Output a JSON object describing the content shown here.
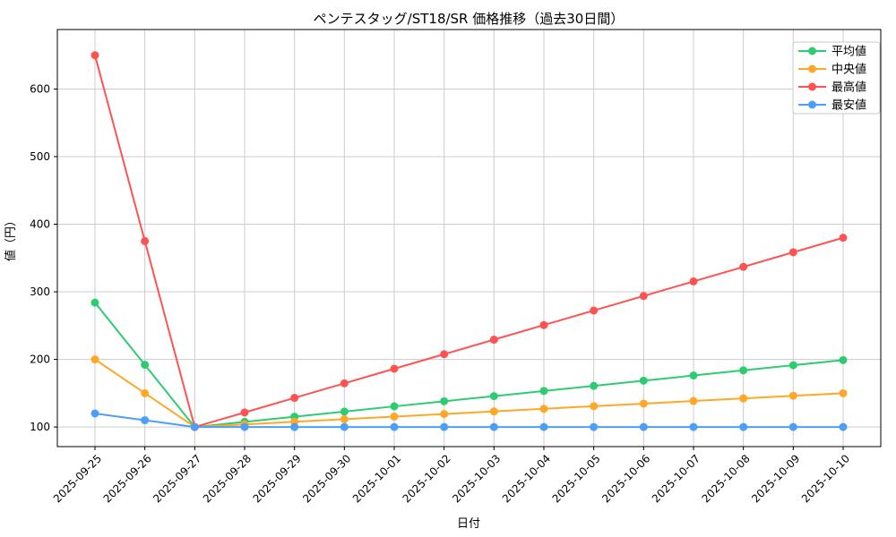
{
  "title": "ペンテスタッグ/ST18/SR 価格推移（過去30日間）",
  "chart_data": {
    "type": "line",
    "title": "ペンテスタッグ/ST18/SR 価格推移（過去30日間）",
    "xlabel": "日付",
    "ylabel": "値（円）",
    "x": [
      "2025-09-25",
      "2025-09-26",
      "2025-09-27",
      "2025-09-28",
      "2025-09-29",
      "2025-09-30",
      "2025-10-01",
      "2025-10-02",
      "2025-10-03",
      "2025-10-04",
      "2025-10-05",
      "2025-10-06",
      "2025-10-07",
      "2025-10-08",
      "2025-10-09",
      "2025-10-10"
    ],
    "series": [
      {
        "name": "平均値",
        "color": "#2ecc71",
        "values": [
          284,
          192,
          100,
          107.6,
          115.2,
          122.8,
          130.5,
          138.1,
          145.7,
          153.3,
          160.8,
          168.5,
          176.2,
          183.8,
          191.4,
          199
        ]
      },
      {
        "name": "中央値",
        "color": "#ffa726",
        "values": [
          200,
          150,
          100,
          103.8,
          107.7,
          111.5,
          115.4,
          119.2,
          123.1,
          126.9,
          130.8,
          134.6,
          138.5,
          142.3,
          146.2,
          150
        ]
      },
      {
        "name": "最高値",
        "color": "#ff5252",
        "values": [
          650,
          375,
          100,
          121.5,
          143.1,
          164.6,
          186.2,
          207.7,
          229.2,
          250.8,
          272.3,
          293.8,
          315.4,
          336.9,
          358.5,
          380
        ]
      },
      {
        "name": "最安値",
        "color": "#4d9ef7",
        "values": [
          120,
          110,
          100,
          100,
          100,
          100,
          100,
          100,
          100,
          100,
          100,
          100,
          100,
          100,
          100,
          100
        ]
      }
    ],
    "legend": [
      "平均値",
      "中央値",
      "最高値",
      "最安値"
    ],
    "legend_position": "upper right",
    "yticks": [
      100,
      200,
      300,
      400,
      500,
      600
    ],
    "ylim": [
      71,
      688
    ],
    "grid": true,
    "grid_color": "#cccccc",
    "spine_color": "#000000",
    "background": "#ffffff",
    "marker": "circle",
    "x_tick_rotation": 45
  }
}
